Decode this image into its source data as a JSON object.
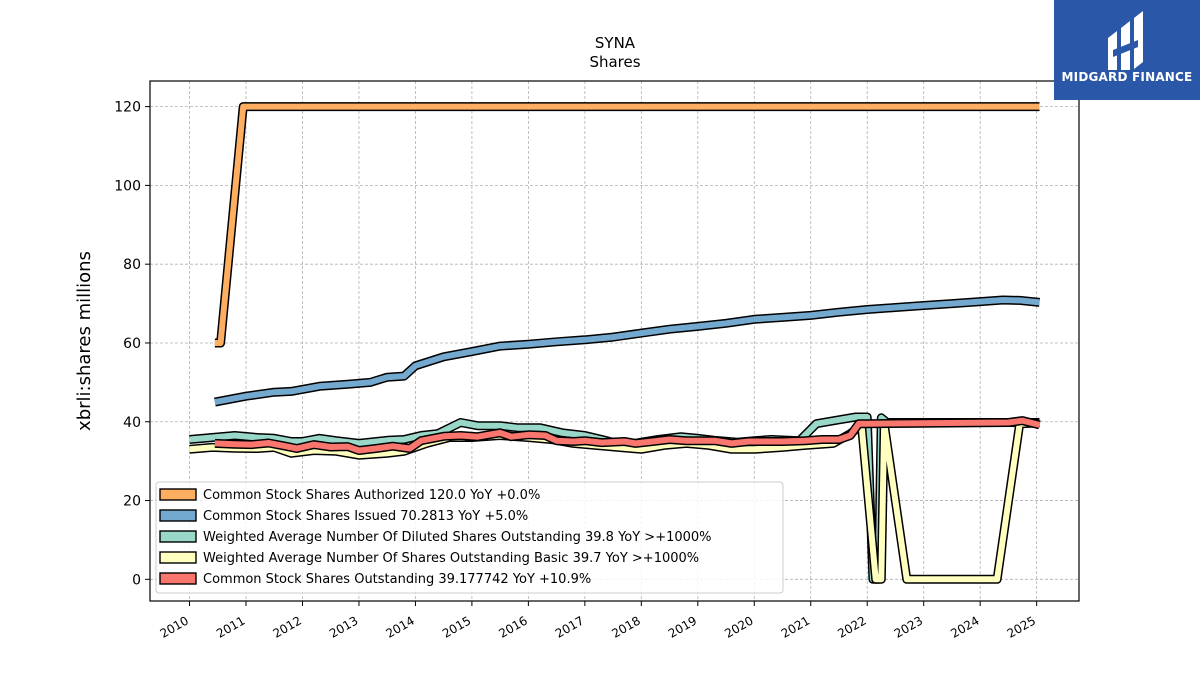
{
  "chart_data": {
    "type": "line",
    "title": "SYNA",
    "subtitle": "Shares",
    "xlabel": "",
    "ylabel": "xbrli:shares millions",
    "ylim": [
      -5.5,
      126.5
    ],
    "xlim": [
      2009.3,
      2025.75
    ],
    "yticks": [
      0,
      20,
      40,
      60,
      80,
      100,
      120
    ],
    "xticks": [
      2010,
      2011,
      2012,
      2013,
      2014,
      2015,
      2016,
      2017,
      2018,
      2019,
      2020,
      2021,
      2022,
      2023,
      2024,
      2025
    ],
    "grid": true,
    "legend_position": "lower-left",
    "series": [
      {
        "name": "Common Stock Shares Authorized",
        "legend": "Common Stock Shares Authorized  120.0 YoY +0.0%",
        "color": "#fdae61",
        "points": [
          [
            2010.45,
            60
          ],
          [
            2010.55,
            60
          ],
          [
            2010.95,
            120
          ],
          [
            2011.05,
            120
          ],
          [
            2025.05,
            120
          ]
        ]
      },
      {
        "name": "Common Stock Shares Issued",
        "legend": "Common Stock Shares Issued  70.2813 YoY +5.0%",
        "color": "#74a9cf",
        "points": [
          [
            2010.45,
            45
          ],
          [
            2011.0,
            46.5
          ],
          [
            2011.5,
            47.5
          ],
          [
            2011.8,
            47.7
          ],
          [
            2012.3,
            49
          ],
          [
            2012.8,
            49.5
          ],
          [
            2013.2,
            50
          ],
          [
            2013.5,
            51.3
          ],
          [
            2013.8,
            51.6
          ],
          [
            2014.0,
            54.2
          ],
          [
            2014.5,
            56.5
          ],
          [
            2015.0,
            57.8
          ],
          [
            2015.5,
            59.2
          ],
          [
            2016.0,
            59.7
          ],
          [
            2016.5,
            60.3
          ],
          [
            2017.0,
            60.8
          ],
          [
            2017.5,
            61.5
          ],
          [
            2018.0,
            62.5
          ],
          [
            2018.5,
            63.5
          ],
          [
            2019.0,
            64.2
          ],
          [
            2019.5,
            65
          ],
          [
            2020.0,
            66
          ],
          [
            2020.5,
            66.5
          ],
          [
            2021.0,
            67
          ],
          [
            2021.5,
            67.8
          ],
          [
            2022.0,
            68.5
          ],
          [
            2022.5,
            69
          ],
          [
            2023.0,
            69.5
          ],
          [
            2023.5,
            70
          ],
          [
            2024.0,
            70.5
          ],
          [
            2024.4,
            70.9
          ],
          [
            2024.7,
            70.8
          ],
          [
            2025.05,
            70.3
          ]
        ]
      },
      {
        "name": "Weighted Average Number Of Diluted Shares Outstanding",
        "legend": "Weighted Average Number Of Diluted Shares Outstanding  39.8 YoY >+1000%",
        "color": "#99d8c9",
        "points": [
          [
            2010.0,
            35.5
          ],
          [
            2010.4,
            36
          ],
          [
            2010.8,
            36.5
          ],
          [
            2011.2,
            36
          ],
          [
            2011.5,
            35.8
          ],
          [
            2011.8,
            35
          ],
          [
            2012.0,
            35
          ],
          [
            2012.3,
            35.8
          ],
          [
            2012.6,
            35.2
          ],
          [
            2013.0,
            34.5
          ],
          [
            2013.5,
            35.3
          ],
          [
            2013.8,
            35.5
          ],
          [
            2014.1,
            36.5
          ],
          [
            2014.4,
            37
          ],
          [
            2014.8,
            39.8
          ],
          [
            2015.1,
            39
          ],
          [
            2015.5,
            39
          ],
          [
            2015.8,
            38.5
          ],
          [
            2016.2,
            38.5
          ],
          [
            2016.6,
            37.2
          ],
          [
            2017.0,
            36.5
          ],
          [
            2017.3,
            35.5
          ],
          [
            2017.7,
            34
          ],
          [
            2018.0,
            34.8
          ],
          [
            2018.3,
            35.5
          ],
          [
            2018.7,
            36.2
          ],
          [
            2019.0,
            35.8
          ],
          [
            2019.3,
            35.3
          ],
          [
            2019.7,
            34.8
          ],
          [
            2020.0,
            35.2
          ],
          [
            2020.3,
            35.5
          ],
          [
            2020.8,
            35.2
          ],
          [
            2021.1,
            39.5
          ],
          [
            2021.5,
            40.5
          ],
          [
            2021.8,
            41.2
          ],
          [
            2022.0,
            41.2
          ],
          [
            2022.1,
            0
          ],
          [
            2022.2,
            0
          ],
          [
            2022.25,
            41
          ],
          [
            2022.35,
            39.8
          ],
          [
            2024.6,
            39.8
          ],
          [
            2025.05,
            39.8
          ]
        ]
      },
      {
        "name": "Weighted Average Number Of Shares Outstanding Basic",
        "legend": "Weighted Average Number Of Shares Outstanding Basic  39.7 YoY >+1000%",
        "color": "#ffffbf",
        "points": [
          [
            2010.0,
            33
          ],
          [
            2010.4,
            33.5
          ],
          [
            2010.8,
            33.3
          ],
          [
            2011.2,
            33.2
          ],
          [
            2011.5,
            33.5
          ],
          [
            2011.8,
            32
          ],
          [
            2012.2,
            32.7
          ],
          [
            2012.6,
            32.5
          ],
          [
            2013.0,
            31.5
          ],
          [
            2013.5,
            32
          ],
          [
            2013.8,
            32.5
          ],
          [
            2014.2,
            34.5
          ],
          [
            2014.6,
            36
          ],
          [
            2015.0,
            36
          ],
          [
            2015.5,
            36.5
          ],
          [
            2016.0,
            36
          ],
          [
            2016.4,
            35.5
          ],
          [
            2016.8,
            34.5
          ],
          [
            2017.2,
            34
          ],
          [
            2017.6,
            33.5
          ],
          [
            2018.0,
            33
          ],
          [
            2018.4,
            34
          ],
          [
            2018.8,
            34.5
          ],
          [
            2019.2,
            34
          ],
          [
            2019.6,
            33
          ],
          [
            2020.0,
            33
          ],
          [
            2020.5,
            33.5
          ],
          [
            2020.9,
            34
          ],
          [
            2021.4,
            34.5
          ],
          [
            2021.7,
            37
          ],
          [
            2021.9,
            39
          ],
          [
            2022.15,
            0
          ],
          [
            2022.25,
            0
          ],
          [
            2022.3,
            39.5
          ],
          [
            2022.7,
            0
          ],
          [
            2024.3,
            0
          ],
          [
            2024.7,
            39.5
          ],
          [
            2025.05,
            39.7
          ]
        ]
      },
      {
        "name": "Common Stock Shares Outstanding",
        "legend": "Common Stock Shares Outstanding  39.177742 YoY +10.9%",
        "color": "#f8766d",
        "points": [
          [
            2010.45,
            34.5
          ],
          [
            2010.8,
            34.3
          ],
          [
            2011.1,
            34.2
          ],
          [
            2011.4,
            34.6
          ],
          [
            2011.7,
            33.8
          ],
          [
            2011.9,
            33.2
          ],
          [
            2012.2,
            34.2
          ],
          [
            2012.5,
            33.6
          ],
          [
            2012.8,
            33.7
          ],
          [
            2013.0,
            32.7
          ],
          [
            2013.3,
            33.2
          ],
          [
            2013.6,
            33.8
          ],
          [
            2013.9,
            33.2
          ],
          [
            2014.1,
            35.2
          ],
          [
            2014.5,
            36.3
          ],
          [
            2014.8,
            36.5
          ],
          [
            2015.1,
            36.2
          ],
          [
            2015.5,
            37.2
          ],
          [
            2015.7,
            36.2
          ],
          [
            2016.0,
            36.7
          ],
          [
            2016.3,
            36.5
          ],
          [
            2016.5,
            35.2
          ],
          [
            2016.8,
            35
          ],
          [
            2017.0,
            35.2
          ],
          [
            2017.3,
            34.7
          ],
          [
            2017.7,
            35
          ],
          [
            2017.9,
            34.5
          ],
          [
            2018.2,
            35
          ],
          [
            2018.5,
            35.5
          ],
          [
            2018.8,
            35.2
          ],
          [
            2019.0,
            35.2
          ],
          [
            2019.3,
            35.2
          ],
          [
            2019.6,
            34.5
          ],
          [
            2019.9,
            35
          ],
          [
            2020.2,
            35
          ],
          [
            2020.5,
            35
          ],
          [
            2020.9,
            35.2
          ],
          [
            2021.2,
            35.5
          ],
          [
            2021.5,
            35.5
          ],
          [
            2021.7,
            36.5
          ],
          [
            2021.85,
            39.5
          ],
          [
            2022.0,
            39.5
          ],
          [
            2024.5,
            39.8
          ],
          [
            2024.75,
            40.3
          ],
          [
            2025.05,
            39.2
          ]
        ]
      }
    ]
  },
  "logo": {
    "text": "MIDGARD FINANCE",
    "background": "#2b57a8"
  }
}
